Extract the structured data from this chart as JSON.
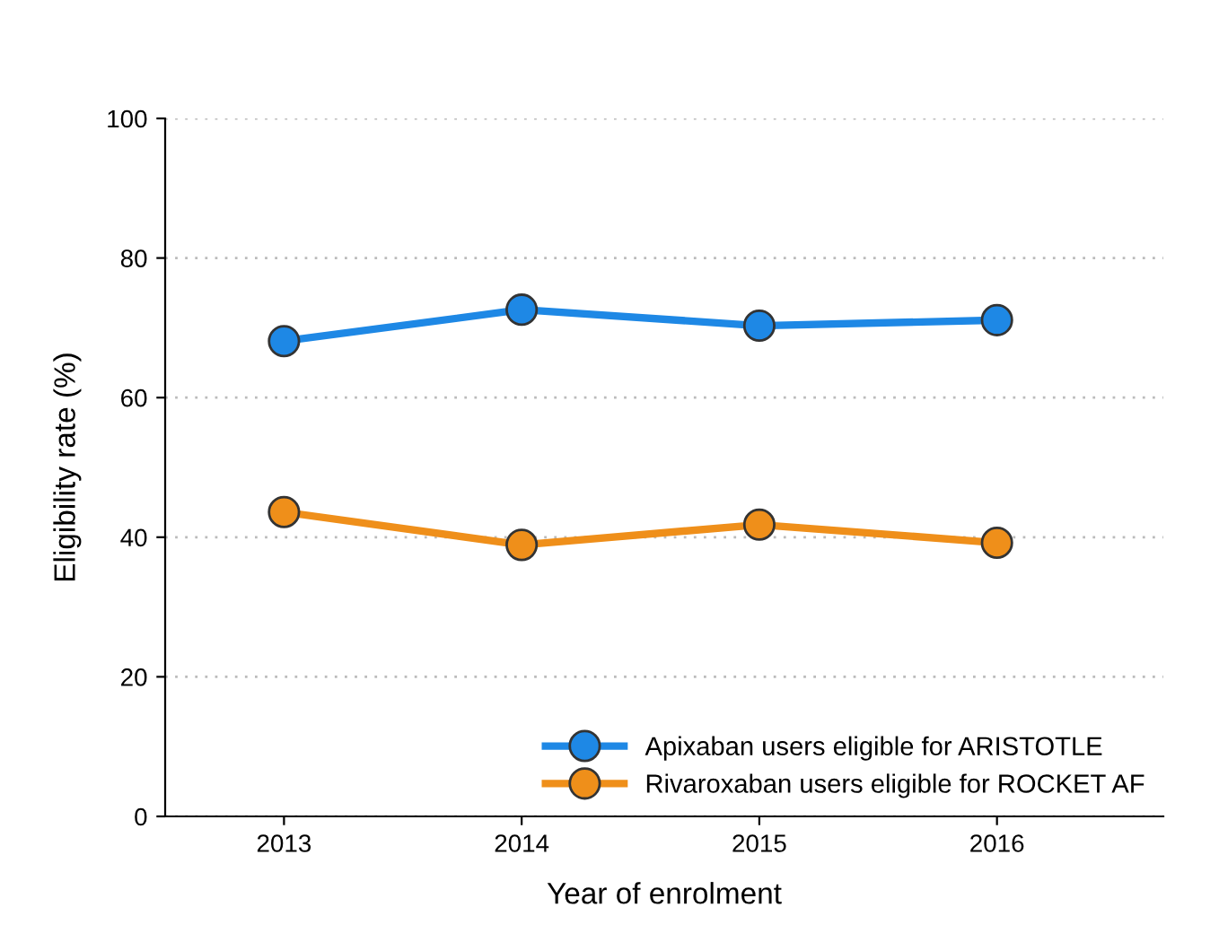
{
  "chart_data": {
    "type": "line",
    "xlabel": "Year of enrolment",
    "ylabel": "Eligibility rate (%)",
    "categories": [
      "2013",
      "2014",
      "2015",
      "2016"
    ],
    "series": [
      {
        "name": "Apixaban users eligible for ARISTOTLE",
        "color": "#1e88e5",
        "values": [
          68.1,
          72.6,
          70.3,
          71.1
        ]
      },
      {
        "name": "Rivaroxaban users eligible for ROCKET AF",
        "color": "#ef8f1a",
        "values": [
          43.6,
          38.9,
          41.8,
          39.2
        ]
      }
    ],
    "ylim": [
      0,
      100
    ],
    "yticks": [
      0,
      20,
      40,
      60,
      80,
      100
    ],
    "grid": "y",
    "legend": "bottom right",
    "marker": "circle",
    "line_style": "solid"
  }
}
